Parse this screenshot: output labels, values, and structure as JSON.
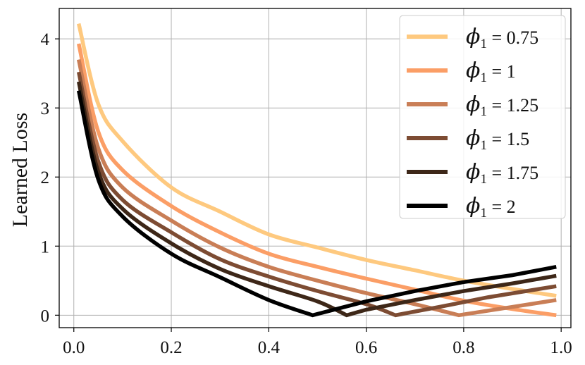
{
  "chart_data": {
    "type": "line",
    "title": "",
    "xlabel": "",
    "ylabel": "Learned Loss",
    "xlim": [
      -0.03,
      1.02
    ],
    "ylim": [
      -0.18,
      4.44
    ],
    "xticks": [
      0.0,
      0.2,
      0.4,
      0.6,
      0.8,
      1.0
    ],
    "xtick_labels": [
      "0.0",
      "0.2",
      "0.4",
      "0.6",
      "0.8",
      "1.0"
    ],
    "yticks": [
      0,
      1,
      2,
      3,
      4
    ],
    "ytick_labels": [
      "0",
      "1",
      "2",
      "3",
      "4"
    ],
    "grid": true,
    "legend_position": "top-right",
    "x": [
      0.01,
      0.05,
      0.1,
      0.2,
      0.3,
      0.4,
      0.5,
      0.6,
      0.7,
      0.8,
      0.9,
      0.99
    ],
    "series": [
      {
        "name": "ϕ₁ = 0.75",
        "symbol": "ϕ",
        "subscript": "1",
        "value": "0.75",
        "color": "#fec97f",
        "points": [
          [
            0.01,
            4.22
          ],
          [
            0.05,
            3.06
          ],
          [
            0.1,
            2.52
          ],
          [
            0.2,
            1.85
          ],
          [
            0.3,
            1.5
          ],
          [
            0.4,
            1.17
          ],
          [
            0.5,
            0.98
          ],
          [
            0.6,
            0.8
          ],
          [
            0.7,
            0.65
          ],
          [
            0.8,
            0.5
          ],
          [
            0.9,
            0.38
          ],
          [
            0.99,
            0.28
          ]
        ]
      },
      {
        "name": "ϕ₁ = 1",
        "symbol": "ϕ",
        "subscript": "1",
        "value": "1",
        "color": "#fb9e66",
        "points": [
          [
            0.01,
            3.93
          ],
          [
            0.05,
            2.66
          ],
          [
            0.1,
            2.1
          ],
          [
            0.2,
            1.58
          ],
          [
            0.3,
            1.2
          ],
          [
            0.4,
            0.89
          ],
          [
            0.5,
            0.7
          ],
          [
            0.6,
            0.53
          ],
          [
            0.7,
            0.37
          ],
          [
            0.8,
            0.21
          ],
          [
            0.9,
            0.09
          ],
          [
            0.99,
            0.0
          ]
        ]
      },
      {
        "name": "ϕ₁ = 1.25",
        "symbol": "ϕ",
        "subscript": "1",
        "value": "1.25",
        "color": "#c97e56",
        "points": [
          [
            0.01,
            3.7
          ],
          [
            0.05,
            2.42
          ],
          [
            0.1,
            1.85
          ],
          [
            0.2,
            1.37
          ],
          [
            0.3,
            0.98
          ],
          [
            0.4,
            0.7
          ],
          [
            0.5,
            0.5
          ],
          [
            0.6,
            0.32
          ],
          [
            0.7,
            0.16
          ],
          [
            0.79,
            0.0
          ],
          [
            0.9,
            0.12
          ],
          [
            0.99,
            0.22
          ]
        ]
      },
      {
        "name": "ϕ₁ = 1.5",
        "symbol": "ϕ",
        "subscript": "1",
        "value": "1.5",
        "color": "#7d4c33",
        "points": [
          [
            0.01,
            3.52
          ],
          [
            0.05,
            2.23
          ],
          [
            0.1,
            1.67
          ],
          [
            0.2,
            1.2
          ],
          [
            0.3,
            0.81
          ],
          [
            0.4,
            0.56
          ],
          [
            0.5,
            0.35
          ],
          [
            0.6,
            0.16
          ],
          [
            0.66,
            0.0
          ],
          [
            0.75,
            0.12
          ],
          [
            0.85,
            0.26
          ],
          [
            0.99,
            0.42
          ]
        ]
      },
      {
        "name": "ϕ₁ = 1.75",
        "symbol": "ϕ",
        "subscript": "1",
        "value": "1.75",
        "color": "#3d2718",
        "points": [
          [
            0.01,
            3.38
          ],
          [
            0.05,
            2.08
          ],
          [
            0.1,
            1.54
          ],
          [
            0.2,
            1.04
          ],
          [
            0.3,
            0.67
          ],
          [
            0.4,
            0.42
          ],
          [
            0.5,
            0.2
          ],
          [
            0.56,
            0.0
          ],
          [
            0.6,
            0.08
          ],
          [
            0.7,
            0.22
          ],
          [
            0.8,
            0.35
          ],
          [
            0.9,
            0.46
          ],
          [
            0.99,
            0.57
          ]
        ]
      },
      {
        "name": "ϕ₁ = 2",
        "symbol": "ϕ",
        "subscript": "1",
        "value": "2",
        "color": "#000000",
        "points": [
          [
            0.01,
            3.25
          ],
          [
            0.05,
            1.97
          ],
          [
            0.1,
            1.43
          ],
          [
            0.2,
            0.89
          ],
          [
            0.3,
            0.55
          ],
          [
            0.4,
            0.22
          ],
          [
            0.49,
            0.0
          ],
          [
            0.55,
            0.11
          ],
          [
            0.6,
            0.2
          ],
          [
            0.7,
            0.35
          ],
          [
            0.8,
            0.48
          ],
          [
            0.9,
            0.58
          ],
          [
            0.99,
            0.7
          ]
        ]
      }
    ]
  }
}
